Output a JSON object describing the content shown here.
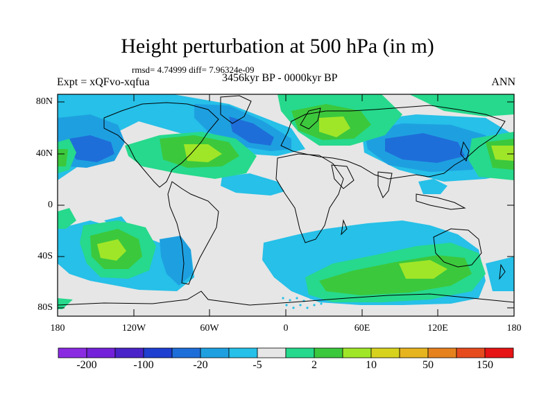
{
  "title": "Height perturbation at 500 hPa (in m)",
  "stats": "rmsd= 4.74999 diff= 7.96324e-09",
  "experiment": "Expt = xQFvo-xqfua",
  "period": "3456kyr BP - 0000kyr BP",
  "season": "ANN",
  "y_ticks": [
    "80N",
    "40N",
    "0",
    "40S",
    "80S"
  ],
  "x_ticks": [
    "180",
    "120W",
    "60W",
    "0",
    "60E",
    "120E",
    "180"
  ],
  "colorbar": {
    "colors": [
      "#8a2be2",
      "#7322d9",
      "#4a24c8",
      "#1f3fd0",
      "#1e6ed9",
      "#1ea0e0",
      "#26c0e8",
      "#e6e6e6",
      "#26d98c",
      "#3cc83c",
      "#a0e628",
      "#d7d21e",
      "#e6b41e",
      "#e6821e",
      "#e64b1e",
      "#e61414"
    ],
    "labels": [
      "-200",
      "-100",
      "-20",
      "-5",
      "2",
      "10",
      "50",
      "150"
    ]
  },
  "palette": {
    "ocean_land_bg": "#e6e6e6",
    "light_blue": "#26c0e8",
    "mid_blue": "#1ea0e0",
    "blue": "#1e6ed9",
    "teal_green": "#26d98c",
    "green": "#3cc83c",
    "yellow_green": "#a0e628"
  }
}
